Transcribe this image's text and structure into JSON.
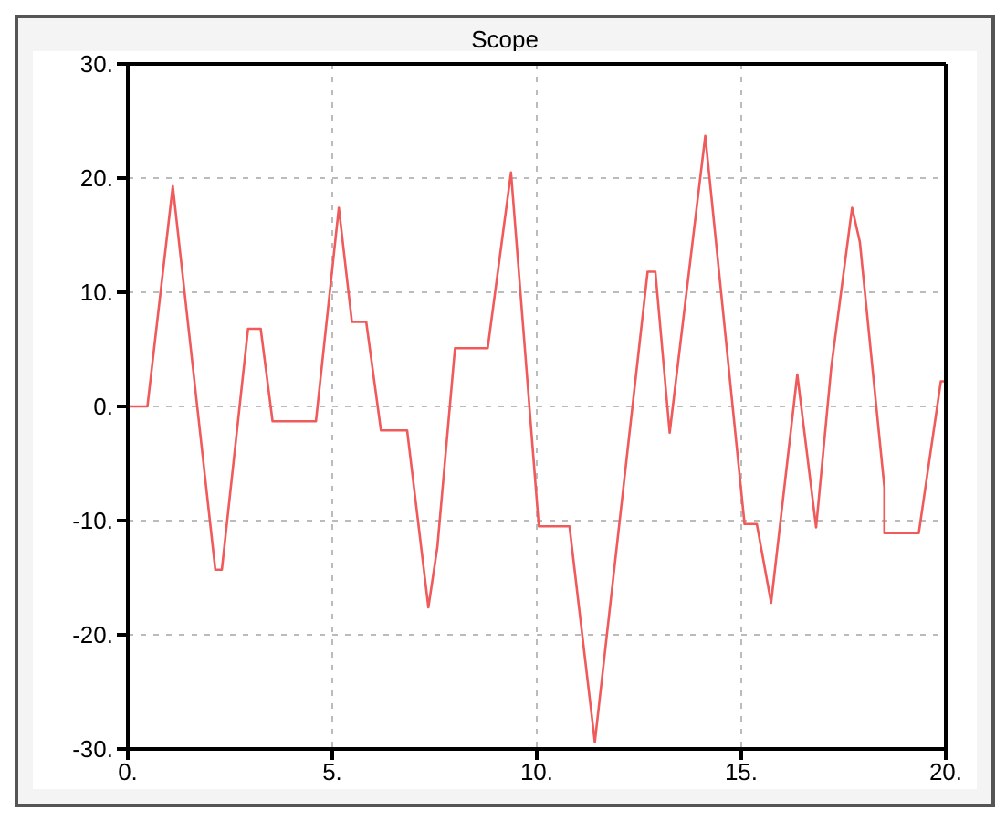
{
  "chart_data": {
    "type": "line",
    "title": "Scope",
    "x": [
      0,
      0.48,
      1.1,
      2.14,
      2.3,
      2.94,
      3.25,
      3.54,
      4.6,
      5.16,
      5.48,
      5.83,
      6.19,
      6.83,
      7.35,
      7.57,
      8.0,
      8.8,
      9.37,
      10.05,
      10.8,
      11.42,
      12.71,
      12.9,
      13.25,
      14.12,
      15.08,
      15.38,
      15.73,
      16.37,
      16.83,
      17.2,
      17.71,
      17.9,
      18.5,
      18.5,
      19.34,
      19.88,
      20
    ],
    "series": [
      {
        "color": "#f05a5a",
        "values": [
          0,
          0,
          19.3,
          -14.3,
          -14.3,
          6.8,
          6.8,
          -1.3,
          -1.3,
          17.4,
          7.4,
          7.4,
          -2.1,
          -2.1,
          -17.6,
          -12.3,
          5.1,
          5.1,
          20.5,
          -10.5,
          -10.5,
          -29.4,
          11.8,
          11.8,
          -2.3,
          23.7,
          -10.3,
          -10.3,
          -17.2,
          2.8,
          -10.6,
          3.4,
          17.4,
          14.4,
          -7.1,
          -11.1,
          -11.1,
          2.2,
          2.2
        ]
      }
    ],
    "xlim": [
      0,
      20
    ],
    "xticks": [
      {
        "value": 0,
        "label": "0."
      },
      {
        "value": 5,
        "label": "5."
      },
      {
        "value": 10,
        "label": "10."
      },
      {
        "value": 15,
        "label": "15."
      },
      {
        "value": 20,
        "label": "20."
      }
    ],
    "ylim": [
      -30,
      30
    ],
    "yticks": [
      {
        "value": -30,
        "label": "-30."
      },
      {
        "value": -20,
        "label": "-20."
      },
      {
        "value": -10,
        "label": "-10."
      },
      {
        "value": 0,
        "label": "0."
      },
      {
        "value": 10,
        "label": "10."
      },
      {
        "value": 20,
        "label": "20."
      },
      {
        "value": 30,
        "label": "30."
      }
    ],
    "grid": true,
    "marker": "none",
    "line_style": "solid",
    "legend": false
  }
}
